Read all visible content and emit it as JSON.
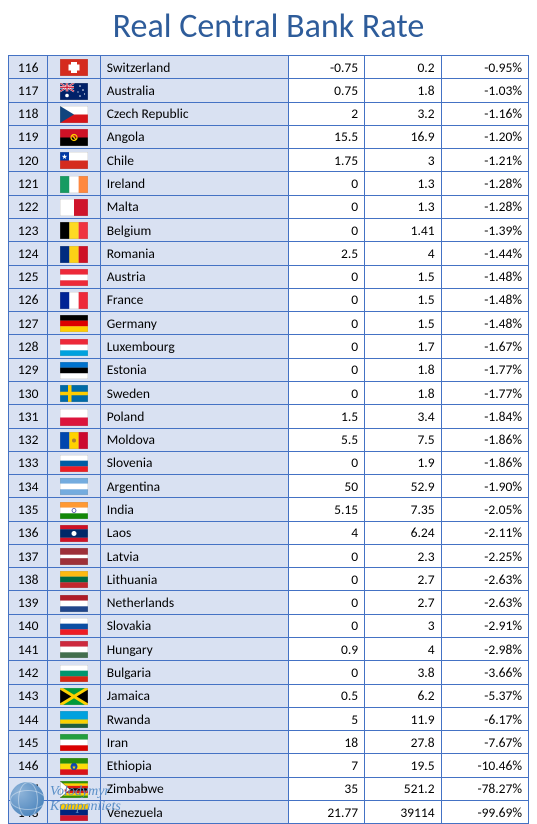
{
  "title": "Real Central Bank Rate",
  "footer": {
    "line1": "Volodymyr",
    "line2": "Kompaniiets"
  },
  "flags": {
    "Switzerland": {
      "bars": [
        {
          "c": "#d52b1e",
          "h": 1
        }
      ],
      "overlay": "plus"
    },
    "Australia": {
      "bars": [
        {
          "c": "#012169",
          "h": 1
        }
      ],
      "overlay": "aus"
    },
    "Czech Republic": {
      "bars": [
        {
          "c": "#ffffff",
          "h": 0.5
        },
        {
          "c": "#d7141a",
          "h": 0.5
        }
      ],
      "overlay": "cz"
    },
    "Angola": {
      "bars": [
        {
          "c": "#ce1126",
          "h": 0.5
        },
        {
          "c": "#000000",
          "h": 0.5
        }
      ],
      "overlay": "ao"
    },
    "Chile": {
      "bars": [
        {
          "c": "#ffffff",
          "h": 0.5
        },
        {
          "c": "#d52b1e",
          "h": 0.5
        }
      ],
      "overlay": "cl"
    },
    "Ireland": {
      "vbars": [
        {
          "c": "#169b62",
          "w": 0.333
        },
        {
          "c": "#ffffff",
          "w": 0.333
        },
        {
          "c": "#ff883e",
          "w": 0.333
        }
      ]
    },
    "Malta": {
      "vbars": [
        {
          "c": "#ffffff",
          "w": 0.5
        },
        {
          "c": "#cf142b",
          "w": 0.5
        }
      ]
    },
    "Belgium": {
      "vbars": [
        {
          "c": "#000000",
          "w": 0.333
        },
        {
          "c": "#fdda24",
          "w": 0.333
        },
        {
          "c": "#ef3340",
          "w": 0.333
        }
      ]
    },
    "Romania": {
      "vbars": [
        {
          "c": "#002b7f",
          "w": 0.333
        },
        {
          "c": "#fcd116",
          "w": 0.333
        },
        {
          "c": "#ce1126",
          "w": 0.333
        }
      ]
    },
    "Austria": {
      "bars": [
        {
          "c": "#ed2939",
          "h": 0.333
        },
        {
          "c": "#ffffff",
          "h": 0.333
        },
        {
          "c": "#ed2939",
          "h": 0.333
        }
      ]
    },
    "France": {
      "vbars": [
        {
          "c": "#002395",
          "w": 0.333
        },
        {
          "c": "#ffffff",
          "w": 0.333
        },
        {
          "c": "#ed2939",
          "w": 0.333
        }
      ]
    },
    "Germany": {
      "bars": [
        {
          "c": "#000000",
          "h": 0.333
        },
        {
          "c": "#dd0000",
          "h": 0.333
        },
        {
          "c": "#ffce00",
          "h": 0.333
        }
      ]
    },
    "Luxembourg": {
      "bars": [
        {
          "c": "#ed2939",
          "h": 0.333
        },
        {
          "c": "#ffffff",
          "h": 0.333
        },
        {
          "c": "#00a1de",
          "h": 0.333
        }
      ]
    },
    "Estonia": {
      "bars": [
        {
          "c": "#0072ce",
          "h": 0.333
        },
        {
          "c": "#000000",
          "h": 0.333
        },
        {
          "c": "#ffffff",
          "h": 0.333
        }
      ]
    },
    "Sweden": {
      "bars": [
        {
          "c": "#006aa7",
          "h": 1
        }
      ],
      "overlay": "se"
    },
    "Poland": {
      "bars": [
        {
          "c": "#ffffff",
          "h": 0.5
        },
        {
          "c": "#dc143c",
          "h": 0.5
        }
      ]
    },
    "Moldova": {
      "vbars": [
        {
          "c": "#0046ae",
          "w": 0.333
        },
        {
          "c": "#ffd200",
          "w": 0.333
        },
        {
          "c": "#cc092f",
          "w": 0.333
        }
      ],
      "overlay": "md"
    },
    "Slovenia": {
      "bars": [
        {
          "c": "#ffffff",
          "h": 0.333
        },
        {
          "c": "#005da4",
          "h": 0.333
        },
        {
          "c": "#ed1c24",
          "h": 0.333
        }
      ]
    },
    "Argentina": {
      "bars": [
        {
          "c": "#74acdf",
          "h": 0.333
        },
        {
          "c": "#ffffff",
          "h": 0.333
        },
        {
          "c": "#74acdf",
          "h": 0.333
        }
      ]
    },
    "India": {
      "bars": [
        {
          "c": "#ff9933",
          "h": 0.333
        },
        {
          "c": "#ffffff",
          "h": 0.333
        },
        {
          "c": "#138808",
          "h": 0.333
        }
      ],
      "overlay": "in"
    },
    "Laos": {
      "bars": [
        {
          "c": "#ce1126",
          "h": 0.25
        },
        {
          "c": "#002868",
          "h": 0.5
        },
        {
          "c": "#ce1126",
          "h": 0.25
        }
      ],
      "overlay": "la"
    },
    "Latvia": {
      "bars": [
        {
          "c": "#9e3039",
          "h": 0.4
        },
        {
          "c": "#ffffff",
          "h": 0.2
        },
        {
          "c": "#9e3039",
          "h": 0.4
        }
      ]
    },
    "Lithuania": {
      "bars": [
        {
          "c": "#fdb913",
          "h": 0.333
        },
        {
          "c": "#006a44",
          "h": 0.333
        },
        {
          "c": "#c1272d",
          "h": 0.333
        }
      ]
    },
    "Netherlands": {
      "bars": [
        {
          "c": "#ae1c28",
          "h": 0.333
        },
        {
          "c": "#ffffff",
          "h": 0.333
        },
        {
          "c": "#21468b",
          "h": 0.333
        }
      ]
    },
    "Slovakia": {
      "bars": [
        {
          "c": "#ffffff",
          "h": 0.333
        },
        {
          "c": "#0b4ea2",
          "h": 0.333
        },
        {
          "c": "#ee1c25",
          "h": 0.333
        }
      ]
    },
    "Hungary": {
      "bars": [
        {
          "c": "#cd2a3e",
          "h": 0.333
        },
        {
          "c": "#ffffff",
          "h": 0.333
        },
        {
          "c": "#436f4d",
          "h": 0.333
        }
      ]
    },
    "Bulgaria": {
      "bars": [
        {
          "c": "#ffffff",
          "h": 0.333
        },
        {
          "c": "#00966e",
          "h": 0.333
        },
        {
          "c": "#d62612",
          "h": 0.333
        }
      ]
    },
    "Jamaica": {
      "bars": [
        {
          "c": "#009b3a",
          "h": 1
        }
      ],
      "overlay": "jm"
    },
    "Rwanda": {
      "bars": [
        {
          "c": "#00a1de",
          "h": 0.5
        },
        {
          "c": "#fad201",
          "h": 0.25
        },
        {
          "c": "#20603d",
          "h": 0.25
        }
      ]
    },
    "Iran": {
      "bars": [
        {
          "c": "#239f40",
          "h": 0.333
        },
        {
          "c": "#ffffff",
          "h": 0.333
        },
        {
          "c": "#da0000",
          "h": 0.333
        }
      ]
    },
    "Ethiopia": {
      "bars": [
        {
          "c": "#298c08",
          "h": 0.333
        },
        {
          "c": "#fcdd09",
          "h": 0.333
        },
        {
          "c": "#da121a",
          "h": 0.333
        }
      ],
      "overlay": "et"
    },
    "Zimbabwe": {
      "bars": [
        {
          "c": "#319208",
          "h": 0.143
        },
        {
          "c": "#ffd200",
          "h": 0.143
        },
        {
          "c": "#de2010",
          "h": 0.143
        },
        {
          "c": "#000000",
          "h": 0.143
        },
        {
          "c": "#de2010",
          "h": 0.143
        },
        {
          "c": "#ffd200",
          "h": 0.143
        },
        {
          "c": "#319208",
          "h": 0.143
        }
      ],
      "overlay": "zw"
    },
    "Venezuela": {
      "bars": [
        {
          "c": "#ffcc00",
          "h": 0.333
        },
        {
          "c": "#00247d",
          "h": 0.333
        },
        {
          "c": "#cf142b",
          "h": 0.333
        }
      ]
    }
  },
  "rows": [
    {
      "rank": 116,
      "country": "Switzerland",
      "v1": "-0.75",
      "v2": "0.2",
      "pct": "-0.95%"
    },
    {
      "rank": 117,
      "country": "Australia",
      "v1": "0.75",
      "v2": "1.8",
      "pct": "-1.03%"
    },
    {
      "rank": 118,
      "country": "Czech Republic",
      "v1": "2",
      "v2": "3.2",
      "pct": "-1.16%"
    },
    {
      "rank": 119,
      "country": "Angola",
      "v1": "15.5",
      "v2": "16.9",
      "pct": "-1.20%"
    },
    {
      "rank": 120,
      "country": "Chile",
      "v1": "1.75",
      "v2": "3",
      "pct": "-1.21%"
    },
    {
      "rank": 121,
      "country": "Ireland",
      "v1": "0",
      "v2": "1.3",
      "pct": "-1.28%"
    },
    {
      "rank": 122,
      "country": "Malta",
      "v1": "0",
      "v2": "1.3",
      "pct": "-1.28%"
    },
    {
      "rank": 123,
      "country": "Belgium",
      "v1": "0",
      "v2": "1.41",
      "pct": "-1.39%"
    },
    {
      "rank": 124,
      "country": "Romania",
      "v1": "2.5",
      "v2": "4",
      "pct": "-1.44%"
    },
    {
      "rank": 125,
      "country": "Austria",
      "v1": "0",
      "v2": "1.5",
      "pct": "-1.48%"
    },
    {
      "rank": 126,
      "country": "France",
      "v1": "0",
      "v2": "1.5",
      "pct": "-1.48%"
    },
    {
      "rank": 127,
      "country": "Germany",
      "v1": "0",
      "v2": "1.5",
      "pct": "-1.48%"
    },
    {
      "rank": 128,
      "country": "Luxembourg",
      "v1": "0",
      "v2": "1.7",
      "pct": "-1.67%"
    },
    {
      "rank": 129,
      "country": "Estonia",
      "v1": "0",
      "v2": "1.8",
      "pct": "-1.77%"
    },
    {
      "rank": 130,
      "country": "Sweden",
      "v1": "0",
      "v2": "1.8",
      "pct": "-1.77%"
    },
    {
      "rank": 131,
      "country": "Poland",
      "v1": "1.5",
      "v2": "3.4",
      "pct": "-1.84%"
    },
    {
      "rank": 132,
      "country": "Moldova",
      "v1": "5.5",
      "v2": "7.5",
      "pct": "-1.86%"
    },
    {
      "rank": 133,
      "country": "Slovenia",
      "v1": "0",
      "v2": "1.9",
      "pct": "-1.86%"
    },
    {
      "rank": 134,
      "country": "Argentina",
      "v1": "50",
      "v2": "52.9",
      "pct": "-1.90%"
    },
    {
      "rank": 135,
      "country": "India",
      "v1": "5.15",
      "v2": "7.35",
      "pct": "-2.05%"
    },
    {
      "rank": 136,
      "country": "Laos",
      "v1": "4",
      "v2": "6.24",
      "pct": "-2.11%"
    },
    {
      "rank": 137,
      "country": "Latvia",
      "v1": "0",
      "v2": "2.3",
      "pct": "-2.25%"
    },
    {
      "rank": 138,
      "country": "Lithuania",
      "v1": "0",
      "v2": "2.7",
      "pct": "-2.63%"
    },
    {
      "rank": 139,
      "country": "Netherlands",
      "v1": "0",
      "v2": "2.7",
      "pct": "-2.63%"
    },
    {
      "rank": 140,
      "country": "Slovakia",
      "v1": "0",
      "v2": "3",
      "pct": "-2.91%"
    },
    {
      "rank": 141,
      "country": "Hungary",
      "v1": "0.9",
      "v2": "4",
      "pct": "-2.98%"
    },
    {
      "rank": 142,
      "country": "Bulgaria",
      "v1": "0",
      "v2": "3.8",
      "pct": "-3.66%"
    },
    {
      "rank": 143,
      "country": "Jamaica",
      "v1": "0.5",
      "v2": "6.2",
      "pct": "-5.37%"
    },
    {
      "rank": 144,
      "country": "Rwanda",
      "v1": "5",
      "v2": "11.9",
      "pct": "-6.17%"
    },
    {
      "rank": 145,
      "country": "Iran",
      "v1": "18",
      "v2": "27.8",
      "pct": "-7.67%"
    },
    {
      "rank": 146,
      "country": "Ethiopia",
      "v1": "7",
      "v2": "19.5",
      "pct": "-10.46%"
    },
    {
      "rank": 147,
      "country": "Zimbabwe",
      "v1": "35",
      "v2": "521.2",
      "pct": "-78.27%"
    },
    {
      "rank": 148,
      "country": "Venezuela",
      "v1": "21.77",
      "v2": "39114",
      "pct": "-99.69%"
    }
  ]
}
